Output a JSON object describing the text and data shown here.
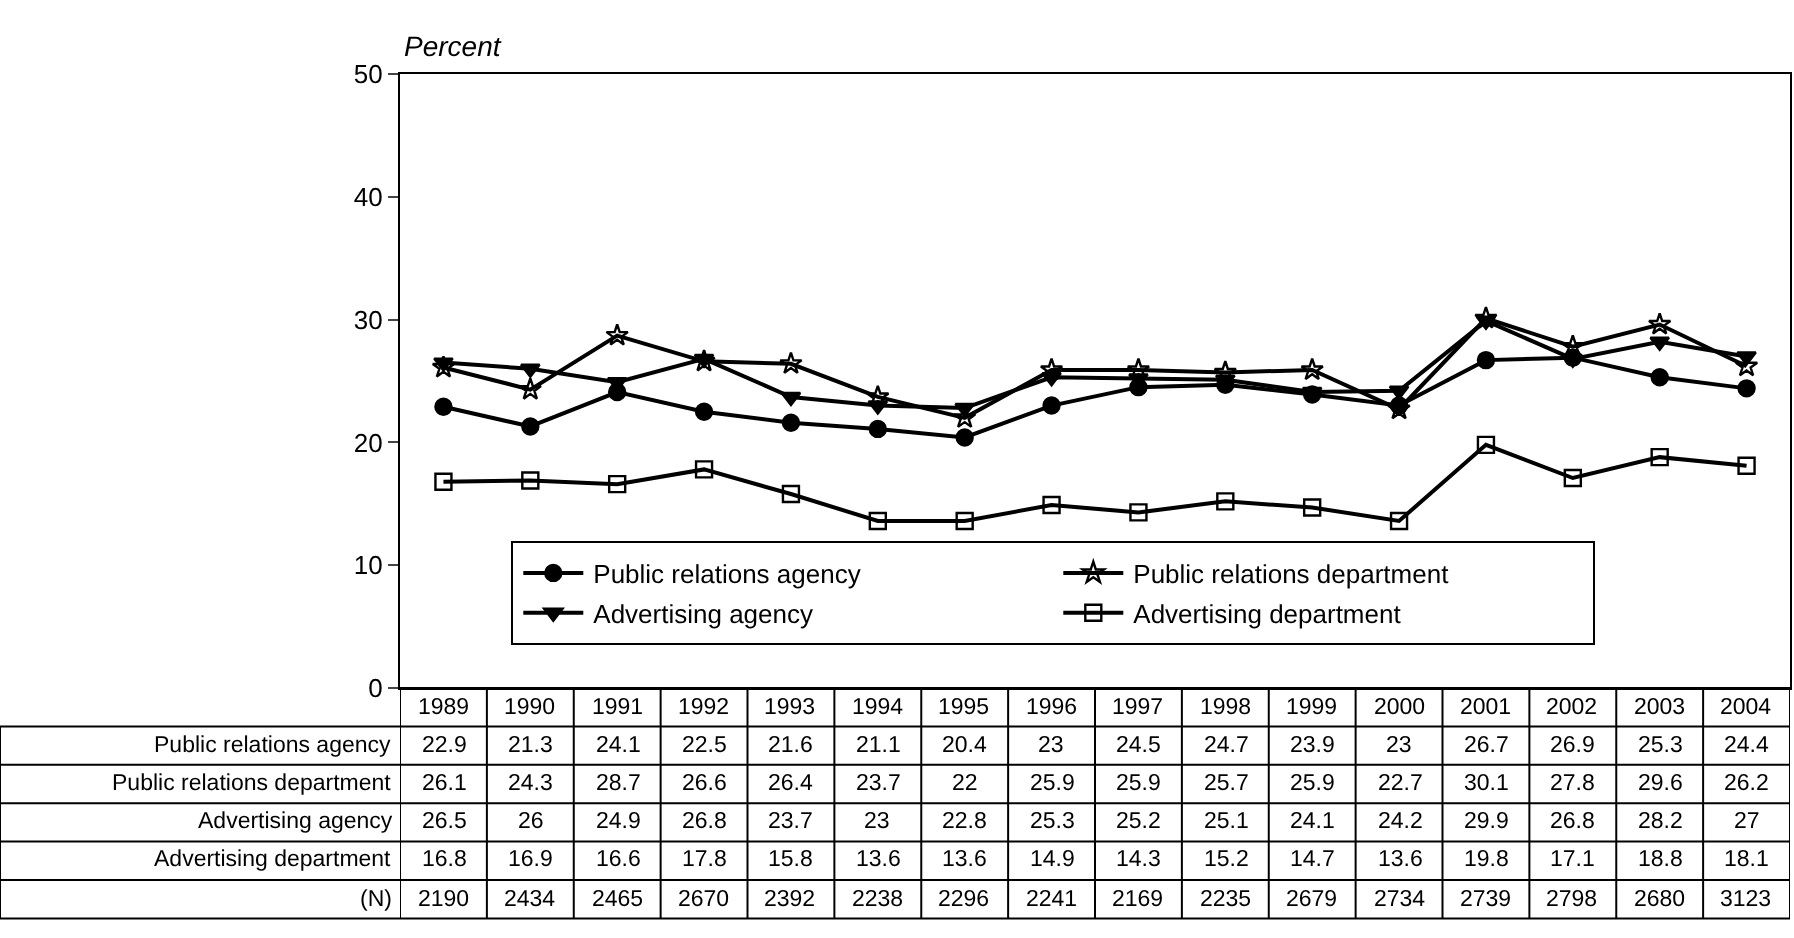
{
  "chart_data": {
    "type": "line",
    "ylabel": "Percent",
    "categories": [
      "1989",
      "1990",
      "1991",
      "1992",
      "1993",
      "1994",
      "1995",
      "1996",
      "1997",
      "1998",
      "1999",
      "2000",
      "2001",
      "2002",
      "2003",
      "2004"
    ],
    "series": [
      {
        "name": "Public relations agency",
        "color": "#000000",
        "marker": "circle",
        "values": [
          22.9,
          21.3,
          24.1,
          22.5,
          21.6,
          21.1,
          20.4,
          23,
          24.5,
          24.7,
          23.9,
          23,
          26.7,
          26.9,
          25.3,
          24.4
        ]
      },
      {
        "name": "Public relations department",
        "color": "#000000",
        "marker": "star",
        "values": [
          26.1,
          24.3,
          28.7,
          26.6,
          26.4,
          23.7,
          22,
          25.9,
          25.9,
          25.7,
          25.9,
          22.7,
          30.1,
          27.8,
          29.6,
          26.2
        ]
      },
      {
        "name": "Advertising agency",
        "color": "#000000",
        "marker": "triangle",
        "values": [
          26.5,
          26,
          24.9,
          26.8,
          23.7,
          23,
          22.8,
          25.3,
          25.2,
          25.1,
          24.1,
          24.2,
          29.9,
          26.8,
          28.2,
          27
        ]
      },
      {
        "name": "Advertising department",
        "color": "#000000",
        "marker": "square",
        "values": [
          16.8,
          16.9,
          16.6,
          17.8,
          15.8,
          13.6,
          13.6,
          14.9,
          14.3,
          15.2,
          14.7,
          13.6,
          19.8,
          17.1,
          18.8,
          18.1
        ]
      }
    ],
    "annotations": [
      "(N)",
      "2190",
      "2434",
      "2465",
      "2670",
      "2392",
      "2238",
      "2296",
      "2241",
      "2169",
      "2235",
      "2679",
      "2734",
      "2739",
      "2798",
      "2680",
      "3123"
    ],
    "ylim": [
      0,
      50
    ],
    "yticks": [
      0,
      10,
      20,
      30,
      40,
      50
    ],
    "grid": false,
    "legend": "bottom",
    "data_labels": true,
    "line_style": "solid"
  }
}
